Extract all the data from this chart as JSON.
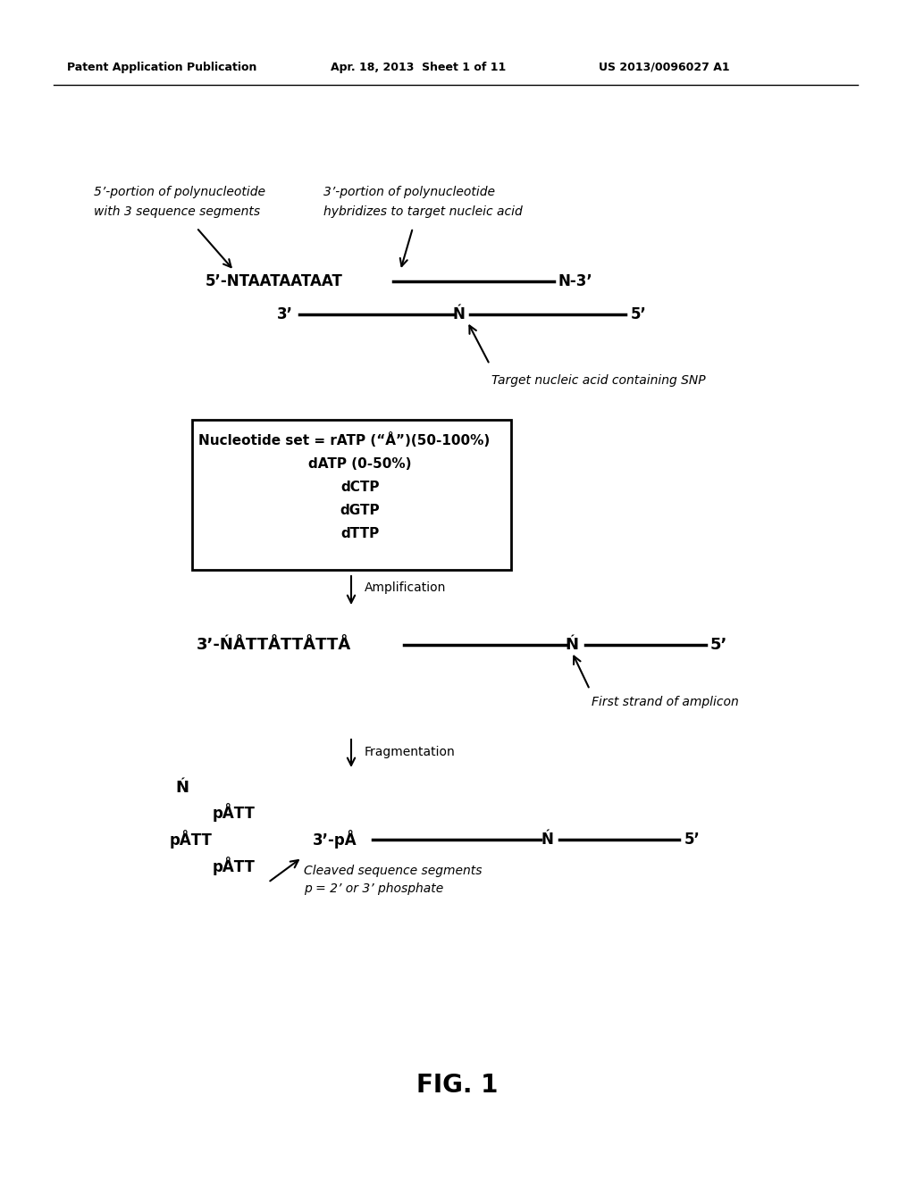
{
  "header_left": "Patent Application Publication",
  "header_mid": "Apr. 18, 2013  Sheet 1 of 11",
  "header_right": "US 2013/0096027 A1",
  "fig_label": "FIG. 1",
  "label1_line1": "5’-portion of polynucleotide",
  "label1_line2": "with 3 sequence segments",
  "label2_line1": "3’-portion of polynucleotide",
  "label2_line2": "hybridizes to target nucleic acid",
  "seq1": "5’-NTAATAATAAT",
  "seq1_end": "N-3’",
  "target_3prime": "3’",
  "target_N": "Ń",
  "target_5prime": "5’",
  "target_label": "Target nucleic acid containing SNP",
  "box_line1": "Nucleotide set = rATP (“Å”)(50-100%)",
  "box_line2": "dATP (0-50%)",
  "box_line3": "dCTP",
  "box_line4": "dGTP",
  "box_line5": "dTTP",
  "amp_label": "Amplification",
  "strand1": "3’-ŃÅTTÅTTÅTTÅ",
  "strand1_N": "Ń",
  "strand1_5prime": "5’",
  "amp_strand_label": "First strand of amplicon",
  "frag_label": "Fragmentation",
  "frag_N": "Ń",
  "frag_pATT1": "pÅTT",
  "frag_pATT2": "pÅTT",
  "frag_pATT3": "pÅTT",
  "frag_3pA": "3’-pÅ",
  "frag_strand_N": "Ń",
  "frag_strand_5prime": "5’",
  "cleaved_label1": "Cleaved sequence segments",
  "cleaved_label2": "p = 2’ or 3’ phosphate",
  "background_color": "#ffffff",
  "text_color": "#000000"
}
